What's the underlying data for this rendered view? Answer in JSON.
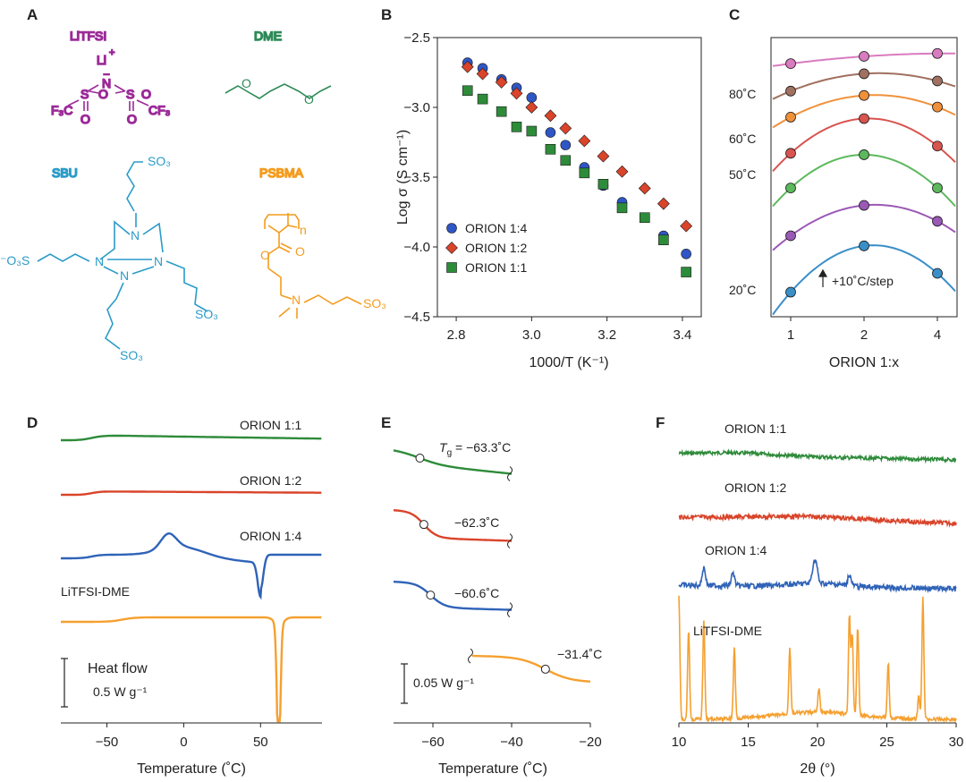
{
  "panels": {
    "A": {
      "label": "A",
      "structures": [
        {
          "name": "LiTFSI",
          "color": "#9b2a98"
        },
        {
          "name": "DME",
          "color": "#2e8b57"
        },
        {
          "name": "SBU",
          "color": "#2b9bc8"
        },
        {
          "name": "PSBMA",
          "color": "#f39c1e"
        }
      ],
      "atoms": {
        "li": "Li",
        "plus": "+",
        "minus": "–",
        "n": "N",
        "s": "S",
        "o": "O",
        "cf3": "F₃C",
        "cf3r": "CF₃",
        "so3": "SO₃",
        "so3l": "⁻O₃S",
        "sub_n": "n"
      }
    },
    "B": {
      "label": "B"
    },
    "C": {
      "label": "C"
    },
    "D": {
      "label": "D"
    },
    "E": {
      "label": "E"
    },
    "F": {
      "label": "F"
    }
  },
  "chart_data": [
    {
      "panel": "B",
      "type": "scatter",
      "xlabel": "1000/T (K⁻¹)",
      "ylabel": "Log σ (S cm⁻¹)",
      "xlim": [
        2.75,
        3.45
      ],
      "ylim": [
        -4.5,
        -2.5
      ],
      "xticks": [
        "2.8",
        "3.0",
        "3.2",
        "3.4"
      ],
      "yticks": [
        "-2.5",
        "-3.0",
        "-3.5",
        "-4.0",
        "-4.5"
      ],
      "legend_position": "bottom-left",
      "series": [
        {
          "name": "ORION 1:4",
          "marker": "circle",
          "color": "#2f56c6",
          "x": [
            2.83,
            2.87,
            2.92,
            2.96,
            3.0,
            3.05,
            3.09,
            3.14,
            3.19,
            3.24,
            3.3,
            3.35,
            3.41
          ],
          "y": [
            -2.68,
            -2.72,
            -2.8,
            -2.86,
            -2.93,
            -3.18,
            -3.27,
            -3.43,
            -3.56,
            -3.68,
            -3.79,
            -3.92,
            -4.05
          ]
        },
        {
          "name": "ORION 1:2",
          "marker": "diamond",
          "color": "#d9442a",
          "x": [
            2.83,
            2.87,
            2.92,
            2.96,
            3.0,
            3.05,
            3.09,
            3.14,
            3.19,
            3.24,
            3.3,
            3.35,
            3.41
          ],
          "y": [
            -2.71,
            -2.76,
            -2.82,
            -2.9,
            -3.0,
            -3.06,
            -3.15,
            -3.24,
            -3.35,
            -3.46,
            -3.58,
            -3.69,
            -3.85
          ]
        },
        {
          "name": "ORION 1:1",
          "marker": "square",
          "color": "#2e8b3a",
          "x": [
            2.83,
            2.87,
            2.92,
            2.96,
            3.0,
            3.05,
            3.09,
            3.14,
            3.19,
            3.24,
            3.3,
            3.35,
            3.41
          ],
          "y": [
            -2.88,
            -2.94,
            -3.03,
            -3.14,
            -3.17,
            -3.3,
            -3.38,
            -3.47,
            -3.55,
            -3.72,
            -3.79,
            -3.95,
            -4.18
          ]
        }
      ]
    },
    {
      "panel": "C",
      "type": "line",
      "xlabel": "ORION 1:x",
      "categories": [
        "1",
        "2",
        "4"
      ],
      "temperature_labels": [
        "20˚C",
        "50˚C",
        "60˚C",
        "80˚C"
      ],
      "annotation": "+10˚C/step",
      "series": [
        {
          "color": "#3a8fc8",
          "y": [
            -4.18,
            -3.86,
            -4.05
          ]
        },
        {
          "color": "#9b59b6",
          "y": [
            -3.79,
            -3.58,
            -3.69
          ]
        },
        {
          "color": "#5cb85c",
          "y": [
            -3.46,
            -3.23,
            -3.46
          ]
        },
        {
          "color": "#d9534f",
          "y": [
            -3.22,
            -2.98,
            -3.17
          ]
        },
        {
          "color": "#f0913a",
          "y": [
            -2.97,
            -2.82,
            -2.9
          ]
        },
        {
          "color": "#a07060",
          "y": [
            -2.79,
            -2.67,
            -2.72
          ]
        },
        {
          "color": "#d97bbf",
          "y": [
            -2.6,
            -2.55,
            -2.53
          ]
        }
      ]
    },
    {
      "panel": "D",
      "type": "line",
      "xlabel": "Temperature (˚C)",
      "xlim": [
        -80,
        90
      ],
      "xticks": [
        "-50",
        "0",
        "50"
      ],
      "scale_bar": {
        "title": "Heat flow",
        "value": "0.5 W g⁻¹"
      },
      "series": [
        {
          "name": "ORION 1:1",
          "color": "#2e8b3a"
        },
        {
          "name": "ORION 1:2",
          "color": "#d9442a"
        },
        {
          "name": "ORION 1:4",
          "color": "#2f63b8",
          "features": {
            "exotherm_peak_C": -10,
            "endotherm_peak_C": 50
          }
        },
        {
          "name": "LiTFSI-DME",
          "color": "#f5a030",
          "features": {
            "endotherm_peak_C": 62
          }
        }
      ]
    },
    {
      "panel": "E",
      "type": "line",
      "xlabel": "Temperature (˚C)",
      "xlim": [
        -70,
        -20
      ],
      "xticks": [
        "-60",
        "-40",
        "-20"
      ],
      "scale_bar": {
        "value": "0.05 W g⁻¹"
      },
      "tg_prefix": "T",
      "tg_sub": "g",
      "series": [
        {
          "color": "#2e8b3a",
          "tg": -63.3,
          "label": " = −63.3˚C"
        },
        {
          "color": "#d9442a",
          "tg": -62.3,
          "label": "−62.3˚C"
        },
        {
          "color": "#2f63b8",
          "tg": -60.6,
          "label": "−60.6˚C"
        },
        {
          "color": "#f5a030",
          "tg": -31.4,
          "label": "−31.4˚C"
        }
      ]
    },
    {
      "panel": "F",
      "type": "line",
      "xlabel": "2θ (°)",
      "xlim": [
        10,
        30
      ],
      "xticks": [
        "10",
        "15",
        "20",
        "25",
        "30"
      ],
      "series": [
        {
          "name": "ORION 1:1",
          "color": "#2e8b3a"
        },
        {
          "name": "ORION 1:2",
          "color": "#d9442a"
        },
        {
          "name": "ORION 1:4",
          "color": "#2f63b8",
          "peaks_2theta": [
            11.8,
            13.9,
            19.7,
            19.9,
            22.3
          ]
        },
        {
          "name": "LiTFSI-DME",
          "color": "#f5a030",
          "peaks_2theta": [
            10.0,
            10.7,
            11.8,
            14.0,
            18.0,
            20.1,
            22.3,
            22.5,
            22.9,
            25.1,
            27.3,
            27.6
          ]
        }
      ]
    }
  ]
}
